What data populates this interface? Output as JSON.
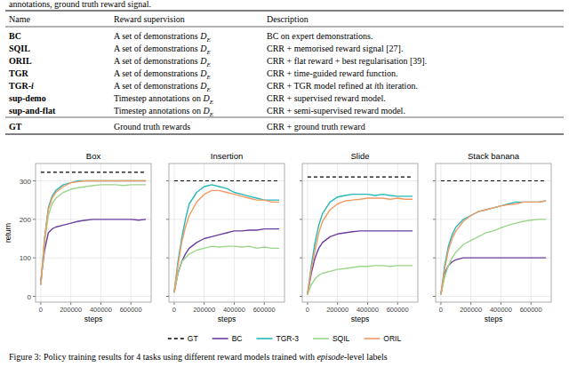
{
  "header_text": "annotations, ground truth reward signal.",
  "table": {
    "columns": [
      "Name",
      "Reward supervision",
      "Description"
    ],
    "rows": [
      [
        "BC",
        [
          {
            "t": "A set of demonstrations "
          },
          {
            "m": "D"
          },
          {
            "sub": "E"
          }
        ],
        "BC on expert demonstrations."
      ],
      [
        "SQIL",
        [
          {
            "t": "A set of demonstrations "
          },
          {
            "m": "D"
          },
          {
            "sub": "E"
          }
        ],
        "CRR + memorised reward signal [27]."
      ],
      [
        "ORIL",
        [
          {
            "t": "A set of demonstrations "
          },
          {
            "m": "D"
          },
          {
            "sub": "E"
          }
        ],
        "CRR + flat reward + best regularisation [39]."
      ],
      [
        "TGR",
        [
          {
            "t": "A set of demonstrations "
          },
          {
            "m": "D"
          },
          {
            "sub": "E"
          }
        ],
        "CRR + time-guided reward function."
      ],
      [
        [
          {
            "t": "TGR-"
          },
          {
            "m": "i"
          }
        ],
        [
          {
            "t": "A set of demonstrations "
          },
          {
            "m": "D"
          },
          {
            "sub": "E"
          }
        ],
        [
          {
            "t": "CRR + TGR model refined at "
          },
          {
            "m": "i"
          },
          {
            "t": "th iteration."
          }
        ]
      ],
      [
        "sup-demo",
        [
          {
            "t": "Timestep annotations on "
          },
          {
            "m": "D"
          },
          {
            "sub": "E"
          }
        ],
        "CRR + supervised reward model."
      ],
      [
        "sup-and-flat",
        [
          {
            "t": "Timestep annotations on "
          },
          {
            "m": "D"
          },
          {
            "sub": "E"
          }
        ],
        "CRR + semi-supervised reward model."
      ],
      [
        "GT",
        "Ground truth rewards",
        "CRR + ground truth reward"
      ]
    ]
  },
  "chart_data": [
    {
      "type": "line",
      "title": "Box",
      "x_label": "steps",
      "y_label": "return",
      "x": [
        0,
        25000,
        50000,
        75000,
        100000,
        150000,
        200000,
        250000,
        300000,
        350000,
        400000,
        450000,
        500000,
        550000,
        600000,
        650000,
        700000
      ],
      "xlim": [
        -35000,
        735000
      ],
      "xticks": [
        0,
        200000,
        400000,
        600000
      ],
      "ylim": [
        -15,
        345
      ],
      "yticks": [
        0,
        100,
        200,
        300
      ],
      "grid": true,
      "legend": "bottom",
      "tick_labels": true,
      "series": [
        {
          "name": "GT",
          "color": "#000000",
          "line_style": "dashed",
          "values": [
            322,
            322,
            322,
            322,
            322,
            322,
            322,
            322,
            322,
            322,
            322,
            322,
            322,
            322,
            322,
            322,
            322
          ]
        },
        {
          "name": "BC",
          "color": "#6b3fa0",
          "values": [
            40,
            120,
            165,
            175,
            180,
            185,
            190,
            195,
            198,
            200,
            200,
            200,
            200,
            200,
            200,
            198,
            200
          ]
        },
        {
          "name": "TGR-3",
          "color": "#26b8b8",
          "values": [
            30,
            150,
            230,
            260,
            275,
            290,
            295,
            300,
            300,
            300,
            300,
            300,
            300,
            300,
            300,
            300,
            300
          ]
        },
        {
          "name": "SQIL",
          "color": "#9bd68b",
          "values": [
            30,
            140,
            210,
            240,
            255,
            270,
            278,
            282,
            285,
            288,
            290,
            290,
            290,
            288,
            290,
            290,
            290
          ]
        },
        {
          "name": "ORIL",
          "color": "#f39a63",
          "values": [
            30,
            150,
            225,
            255,
            270,
            285,
            295,
            298,
            300,
            300,
            300,
            300,
            300,
            300,
            300,
            300,
            300
          ]
        }
      ]
    },
    {
      "type": "line",
      "title": "Insertion",
      "x_label": "steps",
      "x": [
        0,
        25000,
        50000,
        75000,
        100000,
        150000,
        200000,
        250000,
        300000,
        350000,
        400000,
        450000,
        500000,
        550000,
        600000,
        650000,
        700000
      ],
      "xlim": [
        -35000,
        735000
      ],
      "xticks": [
        0,
        200000,
        400000,
        600000
      ],
      "ylim": [
        -15,
        345
      ],
      "yticks": [
        0,
        100,
        200,
        300
      ],
      "grid": true,
      "tick_labels": "x",
      "series": [
        {
          "color": "#000000",
          "line_style": "dashed",
          "values": [
            300,
            300,
            300,
            300,
            300,
            300,
            300,
            300,
            300,
            300,
            300,
            300,
            300,
            300,
            300,
            300,
            300
          ]
        },
        {
          "color": "#6b3fa0",
          "values": [
            10,
            60,
            90,
            110,
            125,
            140,
            150,
            155,
            160,
            165,
            170,
            170,
            172,
            172,
            175,
            175,
            175
          ]
        },
        {
          "color": "#26b8b8",
          "values": [
            10,
            90,
            150,
            200,
            240,
            270,
            285,
            290,
            285,
            280,
            270,
            265,
            260,
            255,
            250,
            250,
            250
          ]
        },
        {
          "color": "#9bd68b",
          "values": [
            10,
            60,
            90,
            100,
            110,
            120,
            125,
            130,
            128,
            130,
            130,
            128,
            130,
            125,
            128,
            125,
            125
          ]
        },
        {
          "color": "#f39a63",
          "values": [
            10,
            80,
            140,
            180,
            210,
            245,
            265,
            275,
            275,
            270,
            265,
            260,
            255,
            250,
            250,
            245,
            245
          ]
        }
      ]
    },
    {
      "type": "line",
      "title": "Slide",
      "x_label": "steps",
      "x": [
        0,
        25000,
        50000,
        75000,
        100000,
        150000,
        200000,
        250000,
        300000,
        350000,
        400000,
        450000,
        500000,
        550000,
        600000,
        650000,
        700000
      ],
      "xlim": [
        -35000,
        735000
      ],
      "xticks": [
        0,
        200000,
        400000,
        600000
      ],
      "ylim": [
        -15,
        345
      ],
      "yticks": [
        0,
        100,
        200,
        300
      ],
      "grid": true,
      "tick_labels": "x",
      "series": [
        {
          "color": "#000000",
          "line_style": "dashed",
          "values": [
            310,
            310,
            310,
            310,
            310,
            310,
            310,
            310,
            310,
            310,
            310,
            310,
            310,
            310,
            310,
            310,
            310
          ]
        },
        {
          "color": "#6b3fa0",
          "values": [
            5,
            60,
            100,
            125,
            140,
            155,
            162,
            165,
            168,
            170,
            170,
            170,
            170,
            170,
            170,
            170,
            170
          ]
        },
        {
          "color": "#26b8b8",
          "values": [
            5,
            80,
            140,
            185,
            215,
            245,
            258,
            262,
            265,
            265,
            265,
            262,
            265,
            262,
            260,
            260,
            260
          ]
        },
        {
          "color": "#9bd68b",
          "values": [
            5,
            30,
            45,
            55,
            60,
            65,
            70,
            72,
            75,
            78,
            78,
            80,
            80,
            78,
            80,
            80,
            80
          ]
        },
        {
          "color": "#f39a63",
          "values": [
            5,
            70,
            120,
            165,
            195,
            225,
            240,
            248,
            250,
            252,
            255,
            255,
            255,
            252,
            255,
            252,
            252
          ]
        }
      ]
    },
    {
      "type": "line",
      "title": "Stack banana",
      "x_label": "steps",
      "x": [
        0,
        25000,
        50000,
        75000,
        100000,
        150000,
        200000,
        250000,
        300000,
        350000,
        400000,
        450000,
        500000,
        550000,
        600000,
        650000,
        700000
      ],
      "xlim": [
        -35000,
        735000
      ],
      "xticks": [
        0,
        200000,
        400000,
        600000
      ],
      "ylim": [
        -15,
        345
      ],
      "yticks": [
        0,
        100,
        200,
        300
      ],
      "grid": true,
      "tick_labels": "x",
      "series": [
        {
          "color": "#000000",
          "line_style": "dashed",
          "values": [
            300,
            300,
            300,
            300,
            300,
            300,
            300,
            300,
            300,
            300,
            300,
            300,
            300,
            300,
            300,
            300,
            300
          ]
        },
        {
          "color": "#6b3fa0",
          "values": [
            5,
            60,
            80,
            90,
            95,
            100,
            100,
            100,
            100,
            100,
            100,
            100,
            100,
            100,
            100,
            100,
            100
          ]
        },
        {
          "color": "#26b8b8",
          "values": [
            5,
            80,
            130,
            160,
            180,
            200,
            210,
            220,
            225,
            230,
            235,
            240,
            245,
            245,
            245,
            245,
            248
          ]
        },
        {
          "color": "#9bd68b",
          "values": [
            5,
            50,
            80,
            100,
            115,
            135,
            145,
            155,
            165,
            170,
            178,
            185,
            190,
            195,
            198,
            200,
            200
          ]
        },
        {
          "color": "#f39a63",
          "values": [
            5,
            70,
            120,
            150,
            170,
            195,
            210,
            220,
            225,
            230,
            235,
            238,
            240,
            245,
            245,
            245,
            248
          ]
        }
      ]
    }
  ],
  "caption": [
    {
      "t": "Figure 3: Policy training results for 4 tasks using different reward models trained with "
    },
    {
      "m": "episode"
    },
    {
      "t": "-level labels"
    }
  ]
}
